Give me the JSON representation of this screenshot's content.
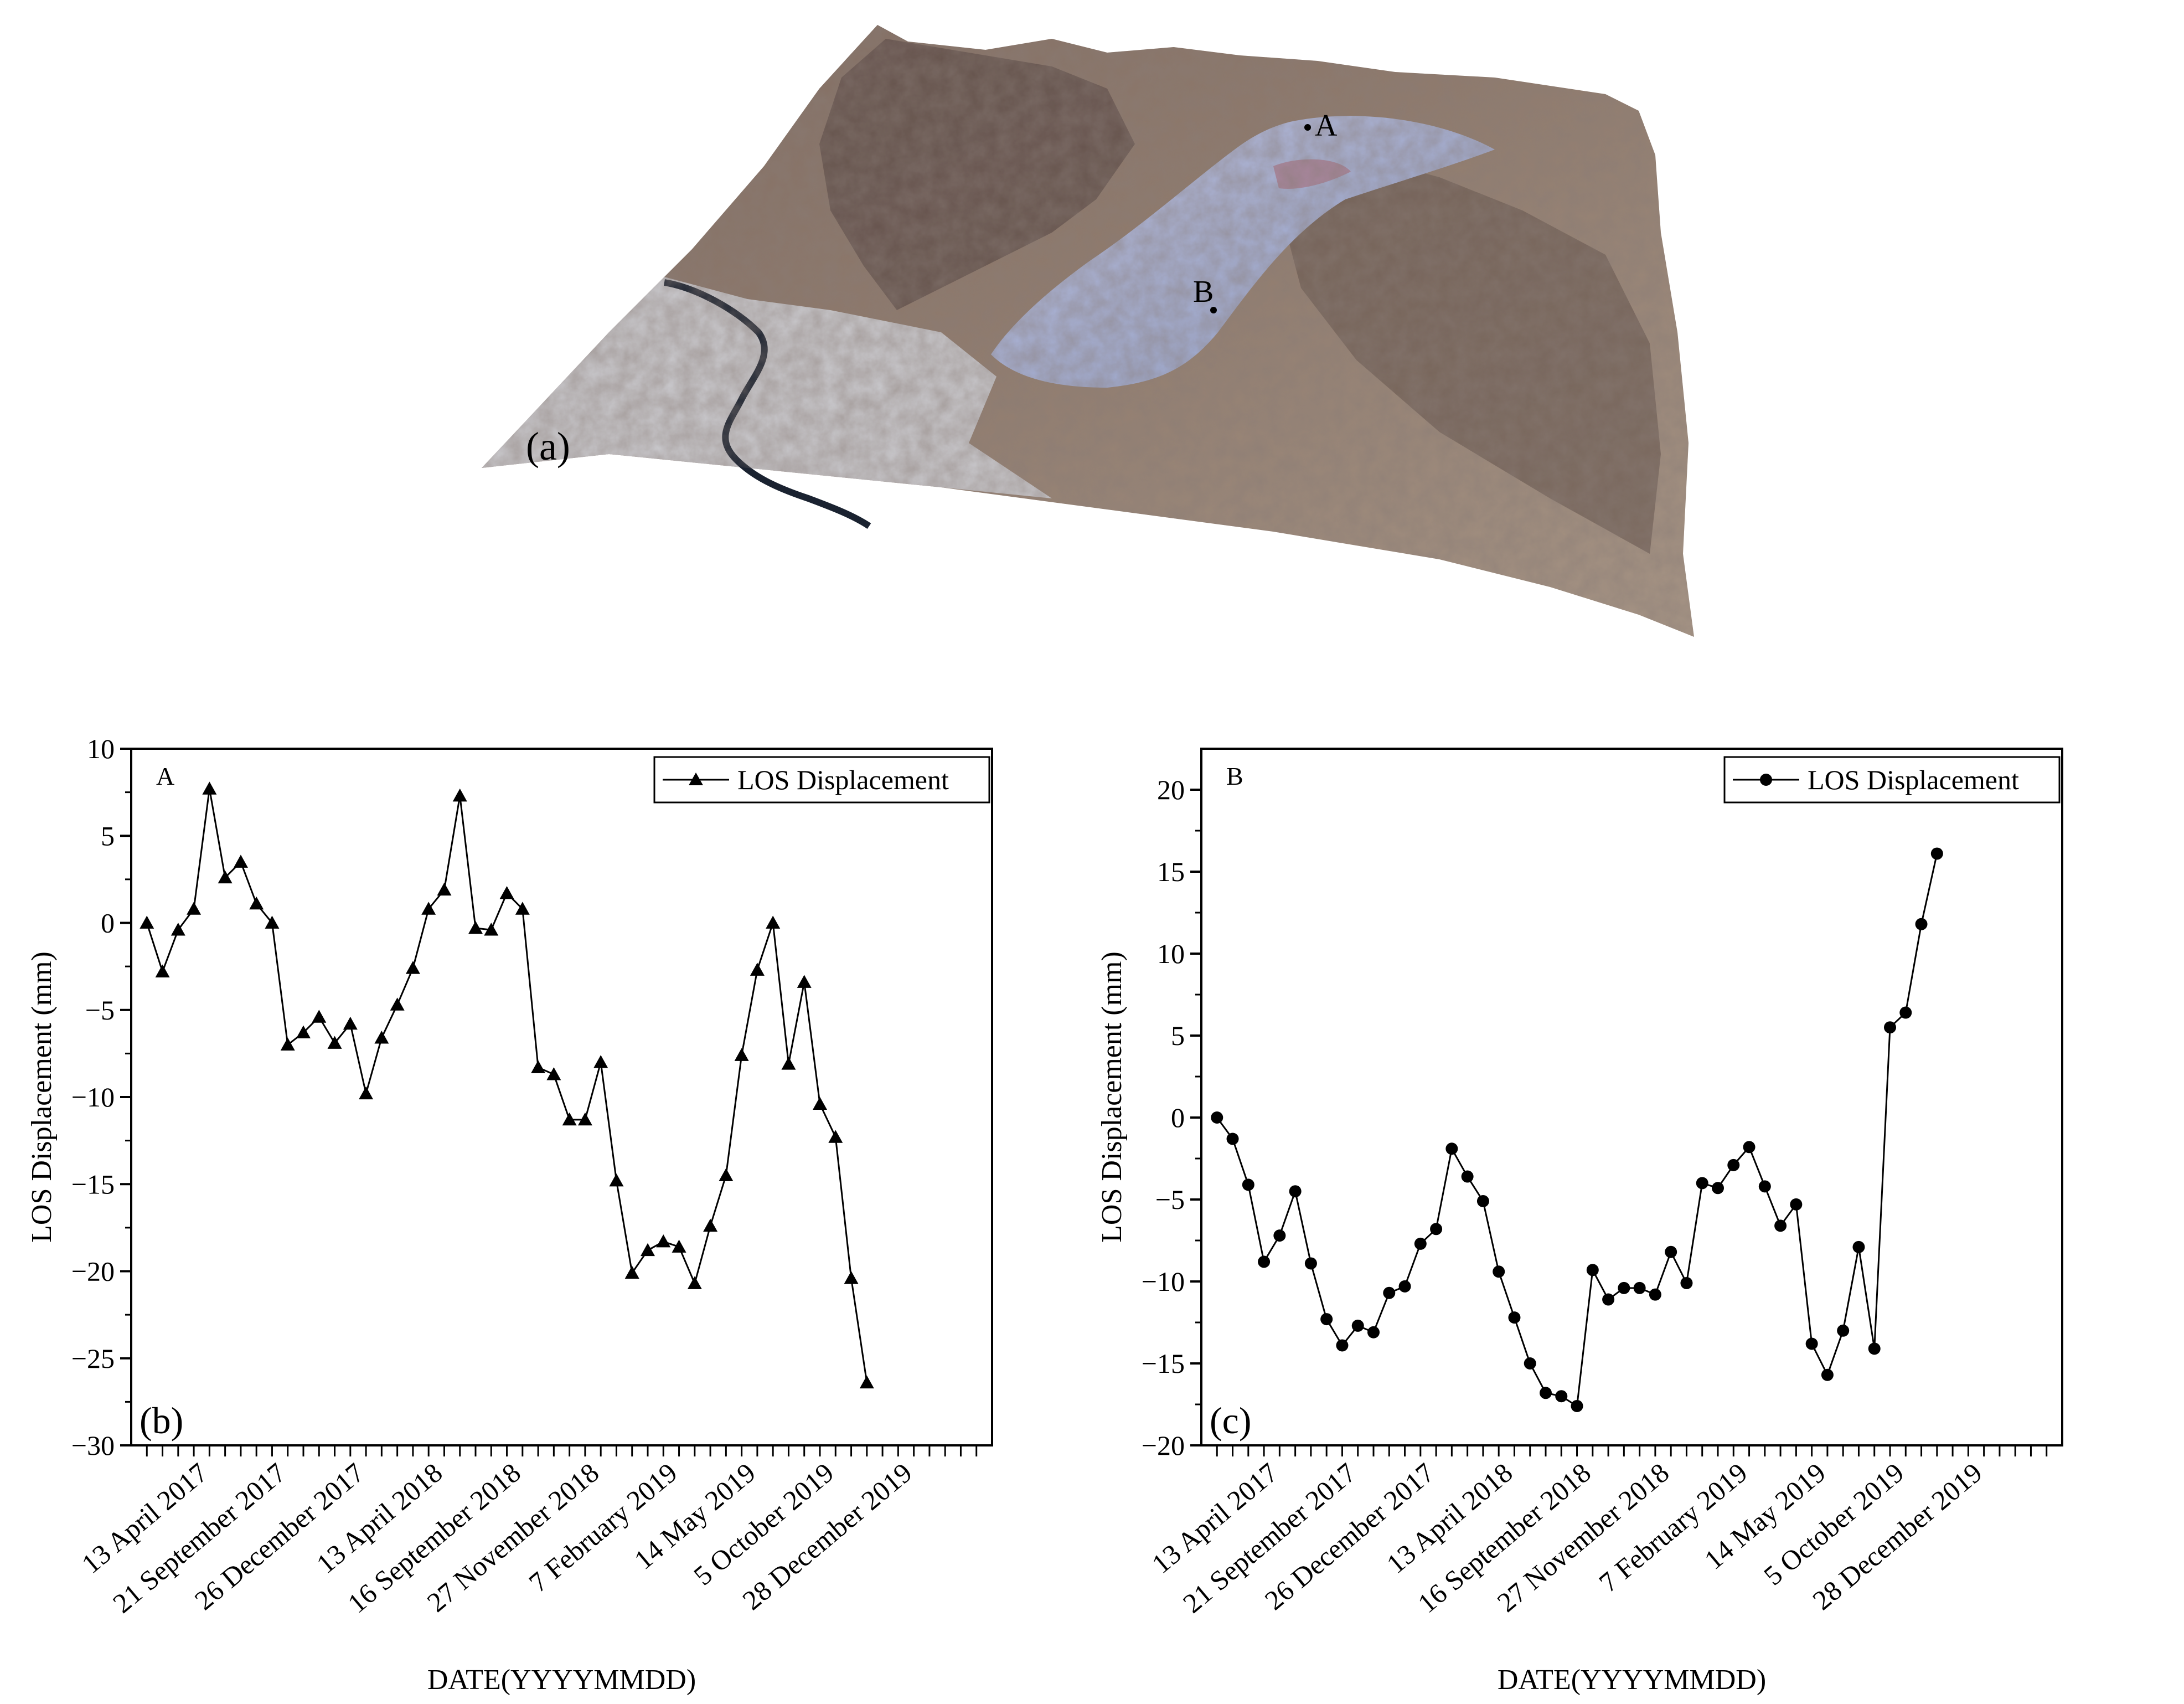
{
  "figure": {
    "panel_a_label": "(a)",
    "point_a_label": "A",
    "point_b_label": "B"
  },
  "colors": {
    "terrain_dark": "#5a4a44",
    "terrain_mid": "#8a7468",
    "terrain_light": "#b9a898",
    "landslide": "#a9b6d8",
    "landslide_pink": "#a77a8e",
    "river": "#1a2230",
    "plain": "#cfcfd2",
    "line": "#000000"
  },
  "chart_data": [
    {
      "type": "line",
      "panel_label": "(b)",
      "point_label": "A",
      "legend": "LOS Displacement",
      "marker": "triangle",
      "xlabel": "DATE(YYYYMMDD)",
      "ylabel": "LOS Displacement (mm)",
      "ylim": [
        -30,
        10
      ],
      "yticks": [
        10,
        5,
        0,
        -5,
        -10,
        -15,
        -20,
        -25,
        -30
      ],
      "ytick_labels": [
        "10",
        "5",
        "0",
        "−5",
        "−10",
        "−15",
        "−20",
        "−25",
        "−30"
      ],
      "xtick_count": 54,
      "xtick_labels": [
        "13 April 2017",
        "21 September 2017",
        "26 December 2017",
        "13 April 2018",
        "16 September 2018",
        "27 November 2018",
        "7 February 2019",
        "14 May 2019",
        "5 October 2019",
        "28 December 2019"
      ],
      "xtick_label_positions": [
        4,
        9,
        14,
        19,
        24,
        29,
        34,
        39,
        44,
        49
      ],
      "values": [
        0,
        -2.8,
        -0.4,
        0.8,
        7.7,
        2.6,
        3.5,
        1.1,
        0,
        -7.0,
        -6.3,
        -5.4,
        -6.9,
        -5.8,
        -9.8,
        -6.6,
        -4.7,
        -2.6,
        0.8,
        1.9,
        7.3,
        -0.3,
        -0.4,
        1.7,
        0.8,
        -8.3,
        -8.7,
        -11.3,
        -11.3,
        -8.0,
        -14.8,
        -20.1,
        -18.8,
        -18.3,
        -18.6,
        -20.7,
        -17.4,
        -14.5,
        -7.6,
        -2.7,
        0,
        -8.1,
        -3.4,
        -10.4,
        -12.3,
        -20.4,
        -26.4
      ]
    },
    {
      "type": "line",
      "panel_label": "(c)",
      "point_label": "B",
      "legend": "LOS Displacement",
      "marker": "circle",
      "xlabel": "DATE(YYYYMMDD)",
      "ylabel": "LOS Displacement (mm)",
      "ylim": [
        -20,
        22.5
      ],
      "yticks": [
        20,
        15,
        10,
        5,
        0,
        -5,
        -10,
        -15,
        -20
      ],
      "ytick_labels": [
        "20",
        "15",
        "10",
        "5",
        "0",
        "−5",
        "−10",
        "−15",
        "−20"
      ],
      "xtick_count": 54,
      "xtick_labels": [
        "13 April 2017",
        "21 September 2017",
        "26 December 2017",
        "13 April 2018",
        "16 September 2018",
        "27 November 2018",
        "7 February 2019",
        "14 May 2019",
        "5 October 2019",
        "28 December 2019"
      ],
      "xtick_label_positions": [
        4,
        9,
        14,
        19,
        24,
        29,
        34,
        39,
        44,
        49
      ],
      "values": [
        0,
        -1.3,
        -4.1,
        -8.8,
        -7.2,
        -4.5,
        -8.9,
        -12.3,
        -13.9,
        -12.7,
        -13.1,
        -10.7,
        -10.3,
        -7.7,
        -6.8,
        -1.9,
        -3.6,
        -5.1,
        -9.4,
        -12.2,
        -15.0,
        -16.8,
        -17.0,
        -17.6,
        -9.3,
        -11.1,
        -10.4,
        -10.4,
        -10.8,
        -8.2,
        -10.1,
        -4.0,
        -4.3,
        -2.9,
        -1.8,
        -4.2,
        -6.6,
        -5.3,
        -13.8,
        -15.7,
        -13.0,
        -7.9,
        -14.1,
        5.5,
        6.4,
        11.8,
        16.1
      ]
    }
  ]
}
